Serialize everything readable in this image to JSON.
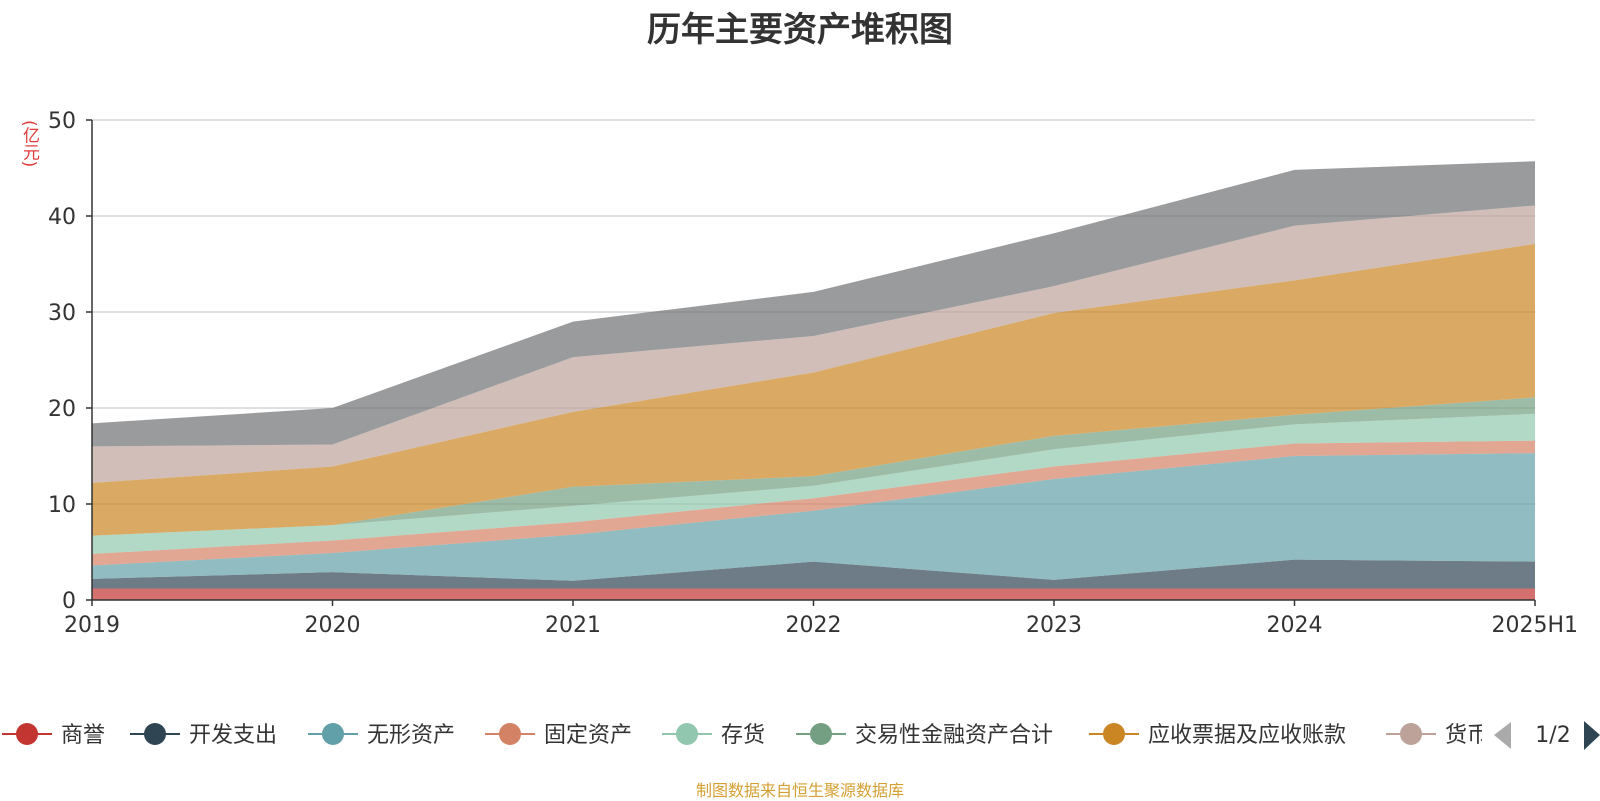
{
  "chart_data": {
    "type": "area",
    "stacked": true,
    "title": "历年主要资产堆积图",
    "ylabel": "(亿元)",
    "ylim": [
      0,
      50
    ],
    "yticks": [
      0,
      10,
      20,
      30,
      40,
      50
    ],
    "grid": true,
    "legend_position": "bottom",
    "legend_page": "1/2",
    "categories": [
      "2019",
      "2020",
      "2021",
      "2022",
      "2023",
      "2024",
      "2025H1"
    ],
    "series": [
      {
        "name": "商誉",
        "color": "#c23531",
        "values": [
          1.2,
          1.2,
          1.2,
          1.2,
          1.2,
          1.2,
          1.2
        ]
      },
      {
        "name": "开发支出",
        "color": "#2f4554",
        "values": [
          1.0,
          1.7,
          0.8,
          2.8,
          0.9,
          3.0,
          2.8
        ]
      },
      {
        "name": "无形资产",
        "color": "#61a0a8",
        "values": [
          1.4,
          2.0,
          4.8,
          5.3,
          10.5,
          10.8,
          11.3
        ]
      },
      {
        "name": "固定资产",
        "color": "#d48265",
        "values": [
          1.2,
          1.3,
          1.3,
          1.3,
          1.3,
          1.3,
          1.3
        ]
      },
      {
        "name": "存货",
        "color": "#91c7ae",
        "values": [
          1.9,
          1.6,
          1.7,
          1.3,
          1.8,
          2.0,
          2.8
        ]
      },
      {
        "name": "交易性金融资产合计",
        "color": "#749f83",
        "values": [
          0.0,
          0.0,
          2.0,
          1.0,
          1.4,
          1.0,
          1.7
        ]
      },
      {
        "name": "应收票据及应收账款",
        "color": "#ca8622",
        "values": [
          5.5,
          6.1,
          7.8,
          10.8,
          12.8,
          14.0,
          16.0
        ]
      },
      {
        "name": "货币资金",
        "color": "#bda29a",
        "values": [
          3.8,
          2.3,
          5.7,
          3.8,
          2.8,
          5.7,
          4.0
        ]
      },
      {
        "name": "",
        "color": "#6e7074",
        "values": [
          2.4,
          3.8,
          3.7,
          4.6,
          5.5,
          5.8,
          4.6
        ]
      }
    ],
    "legend_items": [
      "商誉",
      "开发支出",
      "无形资产",
      "固定资产",
      "存货",
      "交易性金融资产合计",
      "应收票据及应收账款",
      "货币"
    ]
  },
  "footer": "制图数据来自恒生聚源数据库"
}
